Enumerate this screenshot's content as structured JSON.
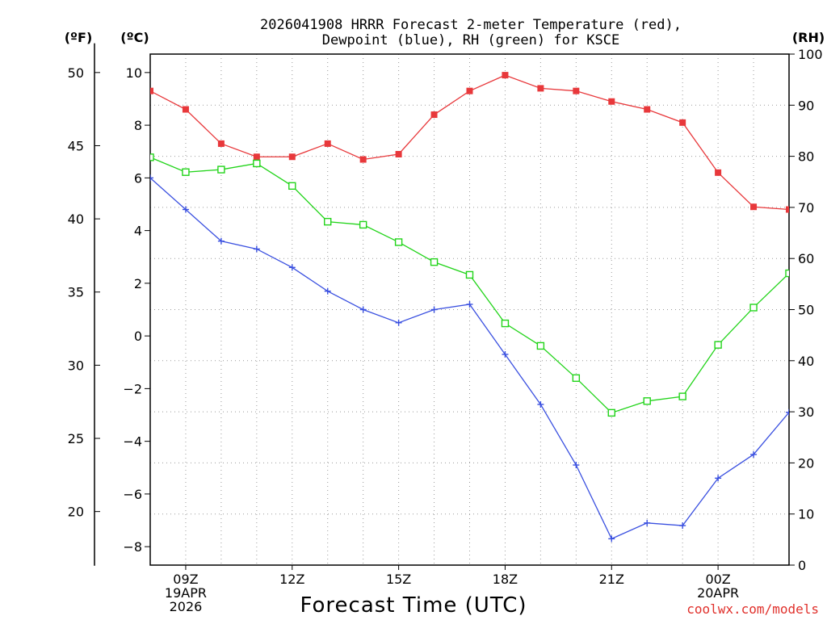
{
  "chart_data": {
    "type": "line",
    "title_lines": [
      "2026041908 HRRR Forecast 2-meter Temperature (red),",
      "Dewpoint (blue), RH (green) for KSCE"
    ],
    "xlabel": "Forecast Time (UTC)",
    "credit": "coolwx.com/models",
    "units": {
      "f": "(ºF)",
      "c": "(ºC)",
      "rh": "(RH)"
    },
    "hours": [
      8,
      9,
      10,
      11,
      12,
      13,
      14,
      15,
      16,
      17,
      18,
      19,
      20,
      21,
      22,
      23,
      24,
      25,
      26
    ],
    "x_range": [
      8,
      26
    ],
    "x_ticks": [
      {
        "hour": 9,
        "lines": [
          "09Z",
          "19APR",
          "2026"
        ]
      },
      {
        "hour": 12,
        "lines": [
          "12Z"
        ]
      },
      {
        "hour": 15,
        "lines": [
          "15Z"
        ]
      },
      {
        "hour": 18,
        "lines": [
          "18Z"
        ]
      },
      {
        "hour": 21,
        "lines": [
          "21Z"
        ]
      },
      {
        "hour": 24,
        "lines": [
          "00Z",
          "20APR"
        ]
      }
    ],
    "c_range": [
      -8.7,
      10.7
    ],
    "c_ticks": [
      -8,
      -6,
      -4,
      -2,
      0,
      2,
      4,
      6,
      8,
      10
    ],
    "c_tick_labels": [
      "−8",
      "−6",
      "−4",
      "−2",
      "0",
      "2",
      "4",
      "6",
      "8",
      "10"
    ],
    "f_ticks": [
      20,
      25,
      30,
      35,
      40,
      45,
      50
    ],
    "f_tick_labels": [
      "20",
      "25",
      "30",
      "35",
      "40",
      "45",
      "50"
    ],
    "rh_range": [
      0,
      100
    ],
    "rh_ticks": [
      0,
      10,
      20,
      30,
      40,
      50,
      60,
      70,
      80,
      90,
      100
    ],
    "rh_tick_labels": [
      "0",
      "10",
      "20",
      "30",
      "40",
      "50",
      "60",
      "70",
      "80",
      "90",
      "100"
    ],
    "series": [
      {
        "name": "2-meter Temperature",
        "color": "#e8383b",
        "marker": "filled-square",
        "axis": "c",
        "values": [
          9.3,
          8.6,
          7.3,
          6.8,
          6.8,
          7.3,
          6.7,
          6.9,
          8.4,
          9.3,
          9.9,
          9.4,
          9.3,
          8.9,
          8.6,
          8.1,
          6.2,
          4.9,
          4.8
        ]
      },
      {
        "name": "Dewpoint",
        "color": "#3a50e0",
        "marker": "plus",
        "axis": "c",
        "values": [
          6.0,
          4.8,
          3.6,
          3.3,
          2.6,
          1.7,
          1.0,
          0.5,
          1.0,
          1.2,
          -0.7,
          -2.6,
          -4.9,
          -7.7,
          -7.1,
          -7.2,
          -5.4,
          -4.5,
          -2.9
        ]
      },
      {
        "name": "RH",
        "color": "#22d41a",
        "marker": "open-square",
        "axis": "rh",
        "values": [
          79.8,
          76.9,
          77.4,
          78.6,
          74.2,
          67.2,
          66.6,
          63.2,
          59.3,
          56.8,
          47.3,
          42.9,
          36.6,
          29.8,
          32.1,
          33.0,
          43.1,
          50.4,
          57.1
        ]
      }
    ]
  }
}
